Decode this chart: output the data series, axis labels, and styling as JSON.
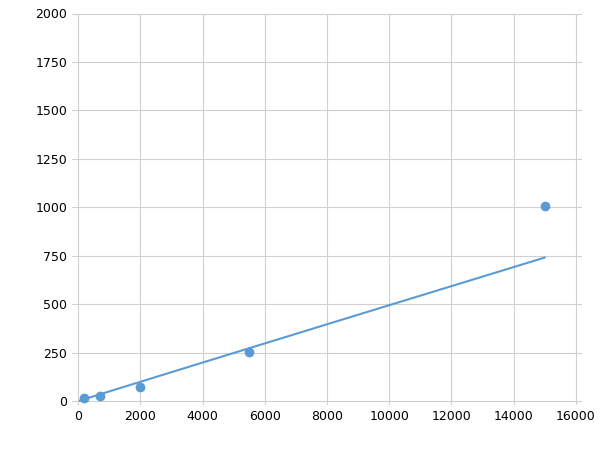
{
  "x": [
    200,
    700,
    2000,
    5500,
    15000
  ],
  "y": [
    15,
    25,
    75,
    255,
    1005
  ],
  "line_color": "#5b9bd5",
  "marker_color": "#5b9bd5",
  "marker_size": 6,
  "line_width": 1.5,
  "xlim": [
    -200,
    16200
  ],
  "ylim": [
    -20,
    2000
  ],
  "xticks": [
    0,
    2000,
    4000,
    6000,
    8000,
    10000,
    12000,
    14000,
    16000
  ],
  "yticks": [
    0,
    250,
    500,
    750,
    1000,
    1250,
    1500,
    1750,
    2000
  ],
  "grid_color": "#d0d0d0",
  "background_color": "#ffffff",
  "figure_bg": "#ffffff"
}
